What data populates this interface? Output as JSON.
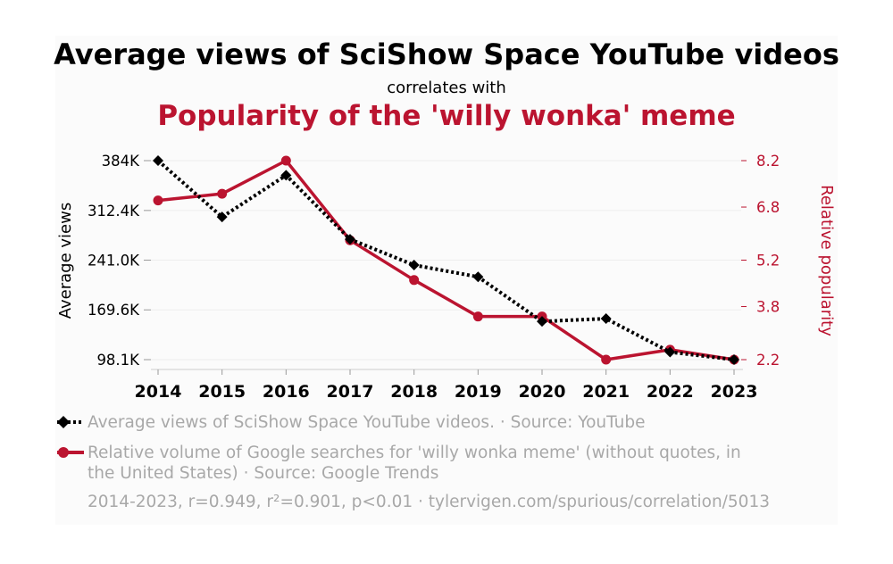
{
  "title": "Average views of SciShow Space YouTube videos",
  "subtitle": "correlates with",
  "title_second": "Popularity of the 'willy wonka' meme",
  "legend": {
    "series1": "Average views of SciShow Space YouTube videos. · Source: YouTube",
    "series2": "Relative volume of Google searches for 'willy wonka meme' (without quotes, in the United States) · Source: Google Trends"
  },
  "footer": "2014-2023, r=0.949, r²=0.901, p<0.01 · tylervigen.com/spurious/correlation/5013",
  "colors": {
    "series1": "#000000",
    "series2": "#bb1430",
    "footer_text": "#a8a8a8"
  },
  "chart_data": {
    "type": "line",
    "x": [
      "2014",
      "2015",
      "2016",
      "2017",
      "2018",
      "2019",
      "2020",
      "2021",
      "2022",
      "2023"
    ],
    "xlabel": "",
    "y_left": {
      "label": "Average views",
      "ticks": [
        "384K",
        "312.4K",
        "241.0K",
        "169.6K",
        "98.1K"
      ],
      "tick_values": [
        384000,
        312400,
        241000,
        169600,
        98100
      ],
      "range": [
        98100,
        384000
      ]
    },
    "y_right": {
      "label": "Relative popularity",
      "ticks": [
        "8.2",
        "6.8",
        "5.2",
        "3.8",
        "2.2"
      ],
      "tick_values": [
        8.2,
        6.8,
        5.2,
        3.8,
        2.2
      ],
      "range": [
        2.2,
        8.2
      ]
    },
    "series": [
      {
        "name": "Average views of SciShow Space YouTube videos",
        "axis": "left",
        "style": "dotted",
        "marker": "diamond",
        "values": [
          384000,
          303000,
          363000,
          271000,
          234000,
          217000,
          153000,
          157000,
          109000,
          98100
        ]
      },
      {
        "name": "Relative volume of Google searches for 'willy wonka meme'",
        "axis": "right",
        "style": "solid",
        "marker": "circle",
        "values": [
          7.0,
          7.2,
          8.2,
          5.8,
          4.6,
          3.5,
          3.5,
          2.2,
          2.5,
          2.2
        ]
      }
    ],
    "grid": true,
    "legend_position": "bottom"
  }
}
